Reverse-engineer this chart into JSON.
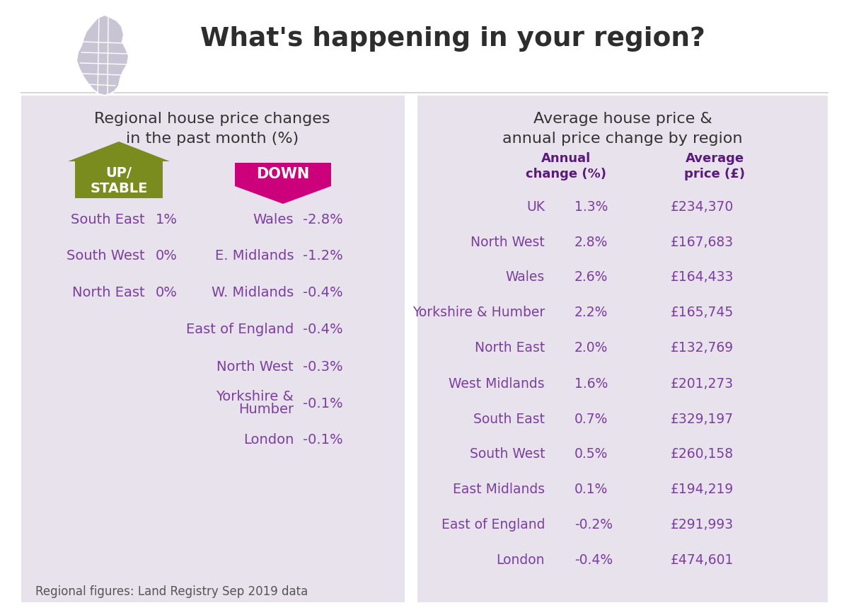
{
  "title": "What's happening in your region?",
  "title_color": "#2d2d2d",
  "bg_color": "#ffffff",
  "panel_bg": "#e8e2ec",
  "left_panel_title": "Regional house price changes\nin the past month (%)",
  "up_color": "#7a8c1e",
  "down_color": "#cc007a",
  "text_color": "#7b3fa0",
  "header_color": "#5a1a7a",
  "dark_text": "#333333",
  "map_color": "#c8c4d4",
  "up_regions": [
    {
      "name": "South East",
      "val": "1%"
    },
    {
      "name": "South West",
      "val": "0%"
    },
    {
      "name": "North East",
      "val": "0%"
    }
  ],
  "down_regions": [
    {
      "name": "Wales",
      "val": "-2.8%"
    },
    {
      "name": "E. Midlands",
      "val": "-1.2%"
    },
    {
      "name": "W. Midlands",
      "val": "-0.4%"
    },
    {
      "name": "East of England",
      "val": "-0.4%"
    },
    {
      "name": "North West",
      "val": "-0.3%"
    },
    {
      "name": "Yorkshire &\nHumber",
      "val": "-0.1%"
    },
    {
      "name": "London",
      "val": "-0.1%"
    }
  ],
  "footer": "Regional figures: Land Registry Sep 2019 data",
  "right_title": "Average house price &\nannual price change by region",
  "col1_header": "Annual\nchange (%)",
  "col2_header": "Average\nprice (£)",
  "right_rows": [
    {
      "region": "UK",
      "annual": "1.3%",
      "price": "£234,370"
    },
    {
      "region": "North West",
      "annual": "2.8%",
      "price": "£167,683"
    },
    {
      "region": "Wales",
      "annual": "2.6%",
      "price": "£164,433"
    },
    {
      "region": "Yorkshire & Humber",
      "annual": "2.2%",
      "price": "£165,745"
    },
    {
      "region": "North East",
      "annual": "2.0%",
      "price": "£132,769"
    },
    {
      "region": "West Midlands",
      "annual": "1.6%",
      "price": "£201,273"
    },
    {
      "region": "South East",
      "annual": "0.7%",
      "price": "£329,197"
    },
    {
      "region": "South West",
      "annual": "0.5%",
      "price": "£260,158"
    },
    {
      "region": "East Midlands",
      "annual": "0.1%",
      "price": "£194,219"
    },
    {
      "region": "East of England",
      "annual": "-0.2%",
      "price": "£291,993"
    },
    {
      "region": "London",
      "annual": "-0.4%",
      "price": "£474,601"
    }
  ]
}
